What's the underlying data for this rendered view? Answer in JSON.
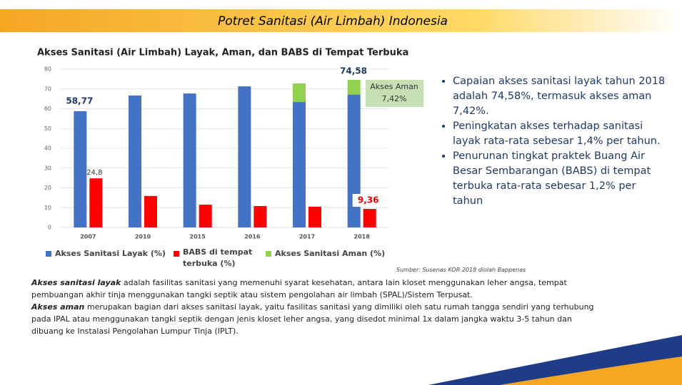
{
  "header": {
    "title": "Potret Sanitasi (Air Limbah) Indonesia"
  },
  "chart_data": {
    "type": "bar",
    "stacked": [
      "Akses Sanitasi Layak (%)",
      "Akses Sanitasi Aman (%)"
    ],
    "title": "Akses Sanitasi (Air Limbah) Layak, Aman, dan BABS di Tempat Terbuka",
    "categories": [
      "2007",
      "2010",
      "2015",
      "2016",
      "2017",
      "2018"
    ],
    "series": [
      {
        "name": "Akses Sanitasi Layak (%)",
        "color": "#4472c4",
        "values": [
          58.77,
          66.7,
          67.7,
          71.3,
          63.4,
          67.16
        ],
        "value_labels": [
          "58,77",
          null,
          null,
          null,
          null,
          null
        ]
      },
      {
        "name": "BABS di tempat terbuka (%)",
        "color": "#ff0000",
        "values": [
          24.8,
          15.9,
          11.5,
          10.8,
          10.5,
          9.36
        ],
        "value_labels": [
          "24,8",
          null,
          null,
          null,
          null,
          "9,36"
        ]
      },
      {
        "name": "Akses Sanitasi Aman (%)",
        "color": "#92d050",
        "values": [
          null,
          null,
          null,
          null,
          9.4,
          7.42
        ]
      }
    ],
    "annotations": [
      "74,58",
      "Akses Aman",
      "7,42%"
    ],
    "ylim": [
      0,
      80
    ],
    "yticks": [
      0,
      10,
      20,
      30,
      40,
      50,
      60,
      70,
      80
    ],
    "grid": true,
    "legend": "bottom"
  },
  "source": "Sumber: Susenas KOR 2018 diolah Bappenas",
  "bullets": [
    "Capaian akses sanitasi layak tahun 2018 adalah 74,58%, termasuk akses aman 7,42%.",
    "Peningkatan akses terhadap sanitasi layak rata-rata sebesar 1,4% per tahun.",
    "Penurunan tingkat praktek Buang Air Besar Sembarangan (BABS) di tempat terbuka rata-rata sebesar 1,2% per tahun"
  ],
  "definitions": [
    {
      "term": "Akses sanitasi layak",
      "text": " adalah fasilitas sanitasi yang memenuhi syarat kesehatan, antara lain kloset menggunakan leher angsa, tempat pembuangan akhir tinja menggunakan tangki septik atau sistem pengolahan air limbah (SPAL)/Sistem Terpusat."
    },
    {
      "term": "Akses aman",
      "text": " merupakan bagian dari akses sanitasi layak, yaitu fasilitas sanitasi yang dimiliki oleh satu rumah tangga sendiri yang terhubung pada IPAL atau menggunakan tangki septik dengan jenis kloset leher angsa, yang disedot minimal 1x dalam jangka waktu 3-5 tahun dan dibuang ke Instalasi Pengolahan Lumpur Tinja (IPLT)."
    }
  ]
}
